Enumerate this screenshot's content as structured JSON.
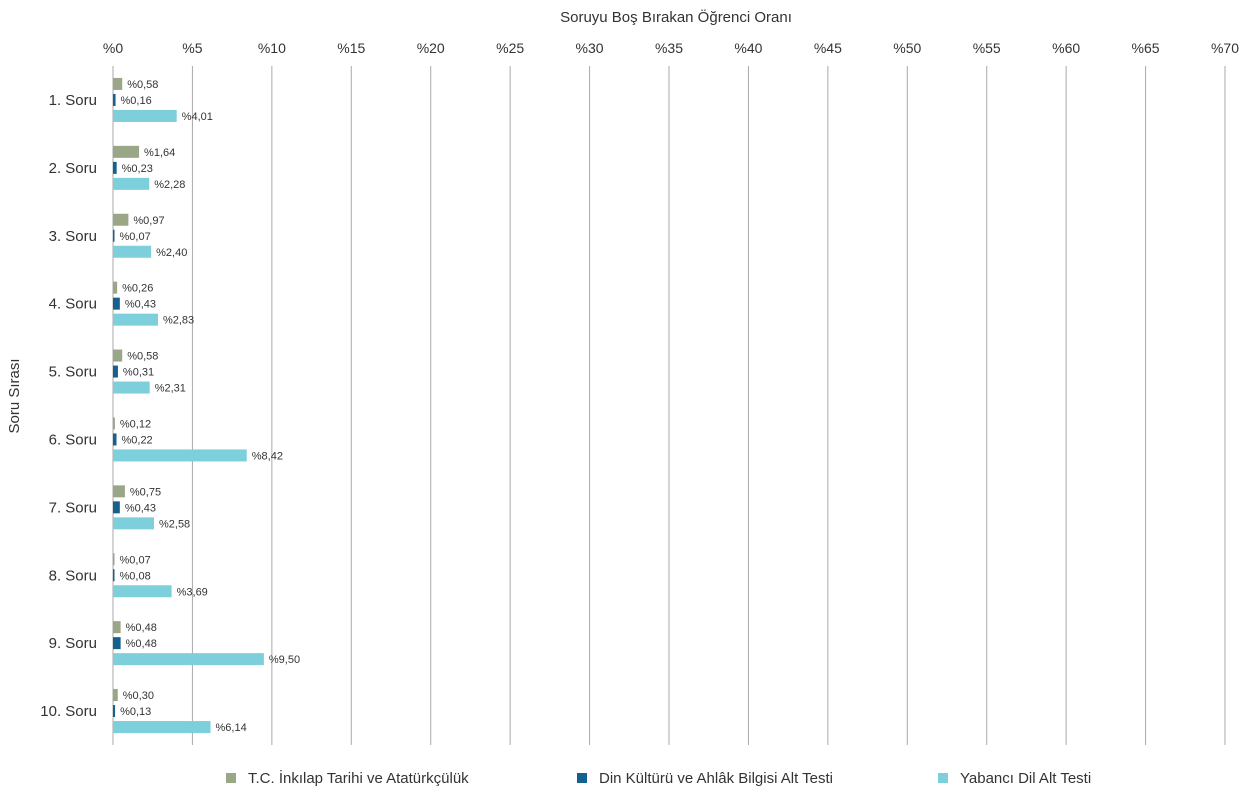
{
  "chart_data": {
    "type": "bar",
    "orientation": "horizontal",
    "title": "Soruyu Boş Bırakan Öğrenci Oranı",
    "xlabel": "Soruyu Boş Bırakan Öğrenci Oranı",
    "ylabel": "Soru Sırası",
    "xlim": [
      0,
      70
    ],
    "x_ticks": [
      "%0",
      "%5",
      "%10",
      "%15",
      "%20",
      "%25",
      "%30",
      "%35",
      "%40",
      "%45",
      "%50",
      "%55",
      "%60",
      "%65",
      "%70"
    ],
    "x_tick_values": [
      0,
      5,
      10,
      15,
      20,
      25,
      30,
      35,
      40,
      45,
      50,
      55,
      60,
      65,
      70
    ],
    "categories": [
      "1. Soru",
      "2. Soru",
      "3. Soru",
      "4. Soru",
      "5. Soru",
      "6. Soru",
      "7. Soru",
      "8. Soru",
      "9. Soru",
      "10. Soru"
    ],
    "grid": "vertical",
    "legend_position": "bottom",
    "series": [
      {
        "name": "T.C. İnkılap Tarihi ve Atatürkçülük",
        "color": "#9aa786",
        "values": [
          0.58,
          1.64,
          0.97,
          0.26,
          0.58,
          0.12,
          0.75,
          0.07,
          0.48,
          0.3
        ],
        "labels": [
          "%0,58",
          "%1,64",
          "%0,97",
          "%0,26",
          "%0,58",
          "%0,12",
          "%0,75",
          "%0,07",
          "%0,48",
          "%0,30"
        ]
      },
      {
        "name": "Din Kültürü ve Ahlâk Bilgisi Alt Testi",
        "color": "#14608f",
        "values": [
          0.16,
          0.23,
          0.07,
          0.43,
          0.31,
          0.22,
          0.43,
          0.08,
          0.48,
          0.13
        ],
        "labels": [
          "%0,16",
          "%0,23",
          "%0,07",
          "%0,43",
          "%0,31",
          "%0,22",
          "%0,43",
          "%0,08",
          "%0,48",
          "%0,13"
        ]
      },
      {
        "name": "Yabancı Dil Alt Testi",
        "color": "#7ccfdb",
        "values": [
          4.01,
          2.28,
          2.4,
          2.83,
          2.31,
          8.42,
          2.58,
          3.69,
          9.5,
          6.14
        ],
        "labels": [
          "%4,01",
          "%2,28",
          "%2,40",
          "%2,83",
          "%2,31",
          "%8,42",
          "%2,58",
          "%3,69",
          "%9,50",
          "%6,14"
        ]
      }
    ]
  }
}
